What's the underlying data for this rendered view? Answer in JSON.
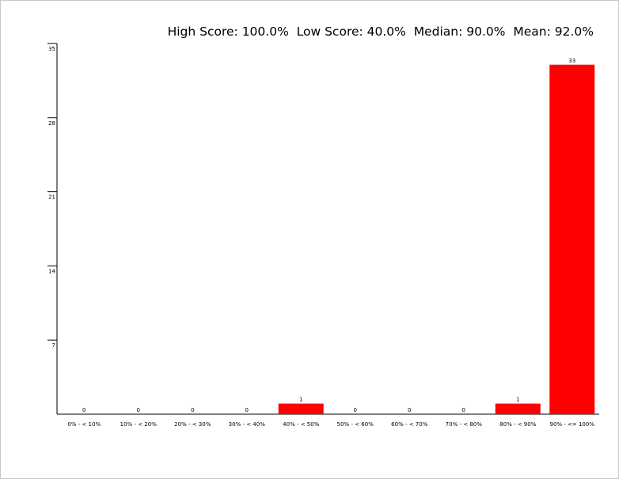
{
  "summary": {
    "text": "High Score: 100.0%  Low Score: 40.0%  Median: 90.0%  Mean: 92.0%"
  },
  "chart_data": {
    "type": "bar",
    "title": "",
    "xlabel": "",
    "ylabel": "",
    "categories": [
      "0% - < 10%",
      "10% - < 20%",
      "20% - < 30%",
      "30% - < 40%",
      "40% - < 50%",
      "50% - < 60%",
      "60% - < 70%",
      "70% - < 80%",
      "80% - < 90%",
      "90% - <= 100%"
    ],
    "values": [
      0,
      0,
      0,
      0,
      1,
      0,
      0,
      0,
      1,
      33
    ],
    "ylim": [
      0,
      35
    ],
    "yticks": [
      7,
      14,
      21,
      28,
      35
    ],
    "grid": false,
    "bar_color": "#ff0000"
  }
}
